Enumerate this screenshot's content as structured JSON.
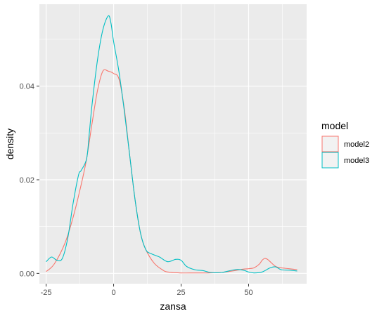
{
  "chart_data": {
    "type": "line",
    "title": "",
    "xlabel": "zansa",
    "ylabel": "density",
    "xlim": [
      -27.5,
      71.5
    ],
    "ylim": [
      -0.0022,
      0.0575
    ],
    "x_ticks": [
      -25,
      0,
      25,
      50
    ],
    "x_tick_labels": [
      "-25",
      "0",
      "25",
      "50"
    ],
    "y_ticks": [
      0.0,
      0.02,
      0.04
    ],
    "y_tick_labels": [
      "0.00",
      "0.02",
      "0.04"
    ],
    "grid": true,
    "legend": {
      "title": "model",
      "position": "right"
    },
    "series": [
      {
        "name": "model2",
        "color": "#F8766D",
        "x": [
          -25,
          -22,
          -18,
          -15,
          -12,
          -10,
          -8,
          -6,
          -4,
          -2,
          0,
          2,
          4,
          6,
          8,
          10,
          12,
          15,
          18,
          20,
          25,
          30,
          35,
          40,
          45,
          48,
          50,
          52,
          54,
          55,
          56,
          57,
          58,
          60,
          62,
          65,
          68
        ],
        "y": [
          0.0004,
          0.002,
          0.0065,
          0.012,
          0.019,
          0.0245,
          0.032,
          0.039,
          0.0432,
          0.0432,
          0.0427,
          0.0415,
          0.035,
          0.025,
          0.0155,
          0.0085,
          0.005,
          0.0022,
          0.0008,
          0.0003,
          0.0001,
          0.0001,
          0.0001,
          0.0002,
          0.0006,
          0.0009,
          0.001,
          0.0012,
          0.002,
          0.0028,
          0.0032,
          0.003,
          0.0025,
          0.0015,
          0.0012,
          0.001,
          0.0008
        ]
      },
      {
        "name": "model3",
        "color": "#00BFC4",
        "x": [
          -25,
          -23,
          -21,
          -19,
          -17,
          -15,
          -13,
          -12,
          -10,
          -9,
          -8,
          -6,
          -4,
          -2,
          -1,
          0,
          2,
          4,
          6,
          8,
          10,
          12,
          14,
          17,
          20,
          23,
          25,
          27,
          30,
          33,
          36,
          40,
          45,
          48,
          50,
          52,
          55,
          58,
          60,
          62,
          65,
          68
        ],
        "y": [
          0.0025,
          0.0035,
          0.0028,
          0.0032,
          0.0075,
          0.015,
          0.021,
          0.022,
          0.0245,
          0.03,
          0.036,
          0.0455,
          0.052,
          0.055,
          0.0535,
          0.0495,
          0.043,
          0.0345,
          0.025,
          0.0155,
          0.0085,
          0.005,
          0.0042,
          0.0035,
          0.0025,
          0.003,
          0.0028,
          0.0015,
          0.0008,
          0.0006,
          0.0002,
          0.0002,
          0.0008,
          0.0007,
          0.0003,
          0.0001,
          0.0003,
          0.0012,
          0.0014,
          0.0008,
          0.0007,
          0.0005
        ]
      }
    ]
  }
}
